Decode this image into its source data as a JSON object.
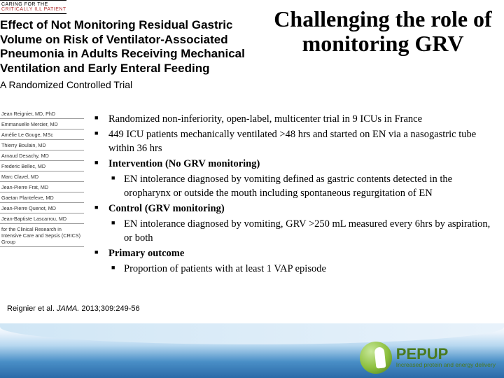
{
  "journal_header": {
    "line1": "CARING FOR THE",
    "line2": "CRITICALLY ILL PATIENT"
  },
  "paper_title": "Effect of Not Monitoring Residual Gastric Volume on Risk of Ventilator-Associated Pneumonia in Adults Receiving Mechanical Ventilation and Early Enteral Feeding",
  "paper_subtitle": "A Randomized Controlled Trial",
  "slide_title": "Challenging the role of monitoring GRV",
  "authors": [
    "Jean Reignier, MD, PhD",
    "Emmanuelle Mercier, MD",
    "Amélie Le Gouge, MSc",
    "Thierry Boulain, MD",
    "Arnaud Desachy, MD",
    "Frederic Bellec, MD",
    "Marc Clavel, MD",
    "Jean-Pierre Frat, MD",
    "Gaetan Plantefeve, MD",
    "Jean-Pierre Quenot, MD",
    "Jean-Baptiste Lascarrou, MD",
    "for the Clinical Research in Intensive Care and Sepsis (CRICS) Group"
  ],
  "bullets": {
    "b1": "Randomized non-inferiority, open-label, multicenter trial in 9 ICUs in France",
    "b2": "449 ICU patients mechanically ventilated >48 hrs and started on EN via a nasogastric tube within 36 hrs",
    "b3": "Intervention (No GRV monitoring)",
    "b3a": "EN intolerance diagnosed by vomiting defined as gastric contents detected in the oropharynx or outside the mouth including spontaneous regurgitation of EN",
    "b4": "Control (GRV monitoring)",
    "b4a": "EN intolerance diagnosed by vomiting, GRV >250 mL measured every 6hrs by aspiration, or both",
    "b5": "Primary outcome",
    "b5a": "Proportion of patients with at least 1 VAP episode"
  },
  "citation": {
    "author": "Reignier et al. ",
    "journal": "JAMA.",
    "ref": " 2013;309:249-56"
  },
  "logo": {
    "name": "PEPUP",
    "tagline1": "Increased protein and energy delivery"
  },
  "colors": {
    "accent_red": "#b03030",
    "logo_green": "#4a7a1f",
    "footer_blue": "#2a6aa8"
  }
}
